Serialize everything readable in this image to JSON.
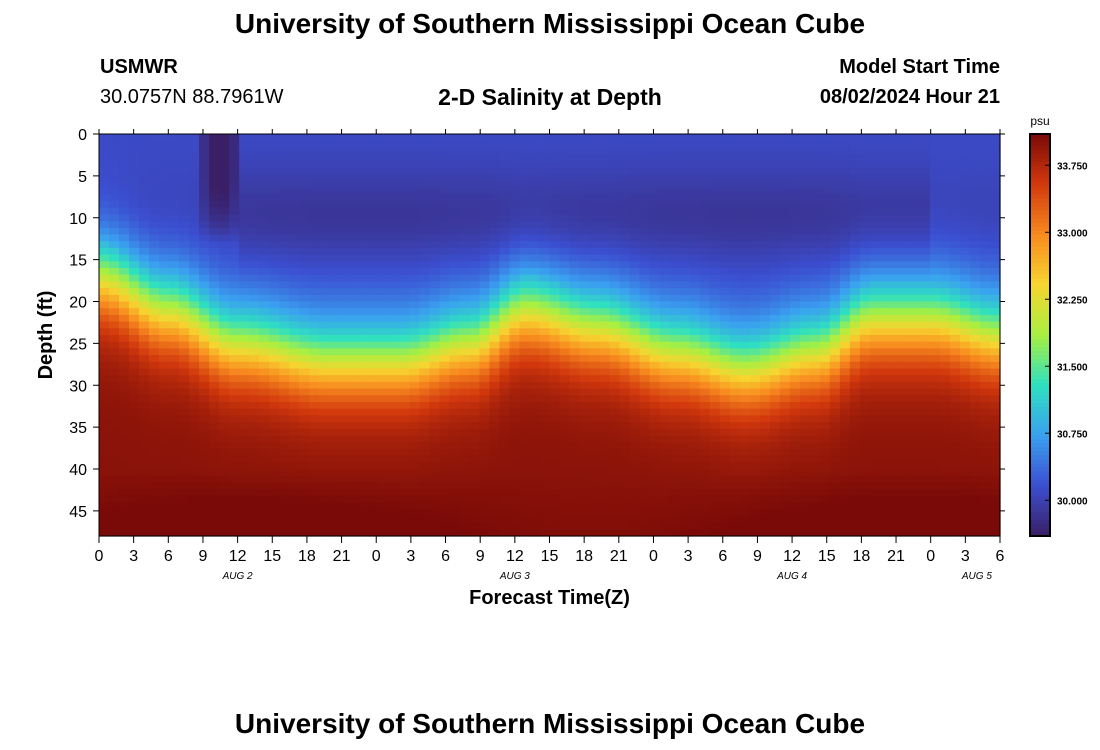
{
  "header": {
    "title": "University of Southern Mississippi Ocean Cube",
    "station": "USMWR",
    "coords": "30.0757N  88.7961W",
    "subtitle": "2-D Salinity at Depth",
    "start_label": "Model Start Time",
    "start_value": "08/02/2024 Hour 21"
  },
  "footer": {
    "title": "University of Southern Mississippi Ocean Cube"
  },
  "chart_data": {
    "type": "heatmap",
    "title": "2-D Salinity at Depth",
    "xlabel": "Forecast Time(Z)",
    "ylabel": "Depth (ft)",
    "x_ticks": [
      "0",
      "3",
      "6",
      "9",
      "12",
      "15",
      "18",
      "21",
      "0",
      "3",
      "6",
      "9",
      "12",
      "15",
      "18",
      "21",
      "0",
      "3",
      "6",
      "9",
      "12",
      "15",
      "18",
      "21",
      "0",
      "3",
      "6"
    ],
    "x_range_hours": [
      0,
      78
    ],
    "day_labels": [
      {
        "label": "AUG 2",
        "hour": 12
      },
      {
        "label": "AUG 3",
        "hour": 36
      },
      {
        "label": "AUG 4",
        "hour": 60
      },
      {
        "label": "AUG 5",
        "hour": 76
      }
    ],
    "y_ticks": [
      0,
      5,
      10,
      15,
      20,
      25,
      30,
      35,
      40,
      45
    ],
    "y_range_ft": [
      0,
      48
    ],
    "colorbar": {
      "unit": "psu",
      "ticks": [
        "30.000",
        "30.750",
        "31.500",
        "32.250",
        "33.000",
        "33.750"
      ],
      "range": [
        29.6,
        34.1
      ]
    },
    "halocline_depth_ft": [
      {
        "hour": 0,
        "depth": 17
      },
      {
        "hour": 6,
        "depth": 21
      },
      {
        "hour": 12,
        "depth": 25
      },
      {
        "hour": 20,
        "depth": 27
      },
      {
        "hour": 26,
        "depth": 27
      },
      {
        "hour": 32,
        "depth": 25
      },
      {
        "hour": 37,
        "depth": 21
      },
      {
        "hour": 43,
        "depth": 23
      },
      {
        "hour": 50,
        "depth": 26
      },
      {
        "hour": 56,
        "depth": 28
      },
      {
        "hour": 62,
        "depth": 26
      },
      {
        "hour": 67,
        "depth": 22
      },
      {
        "hour": 72,
        "depth": 22
      },
      {
        "hour": 78,
        "depth": 24
      }
    ],
    "surface_salinity_psu": 30.1,
    "bottom_salinity_psu": 34.0,
    "low_salinity_plume": {
      "hour_start": 8.5,
      "hour_end": 12.5,
      "depth_max_ft": 13,
      "min_psu": 29.6
    },
    "colors": [
      "#3a1f66",
      "#3b4fd1",
      "#3aa0f0",
      "#2fe0c0",
      "#a8f040",
      "#f7d530",
      "#f88a1f",
      "#d2380d",
      "#7a0a08"
    ]
  }
}
